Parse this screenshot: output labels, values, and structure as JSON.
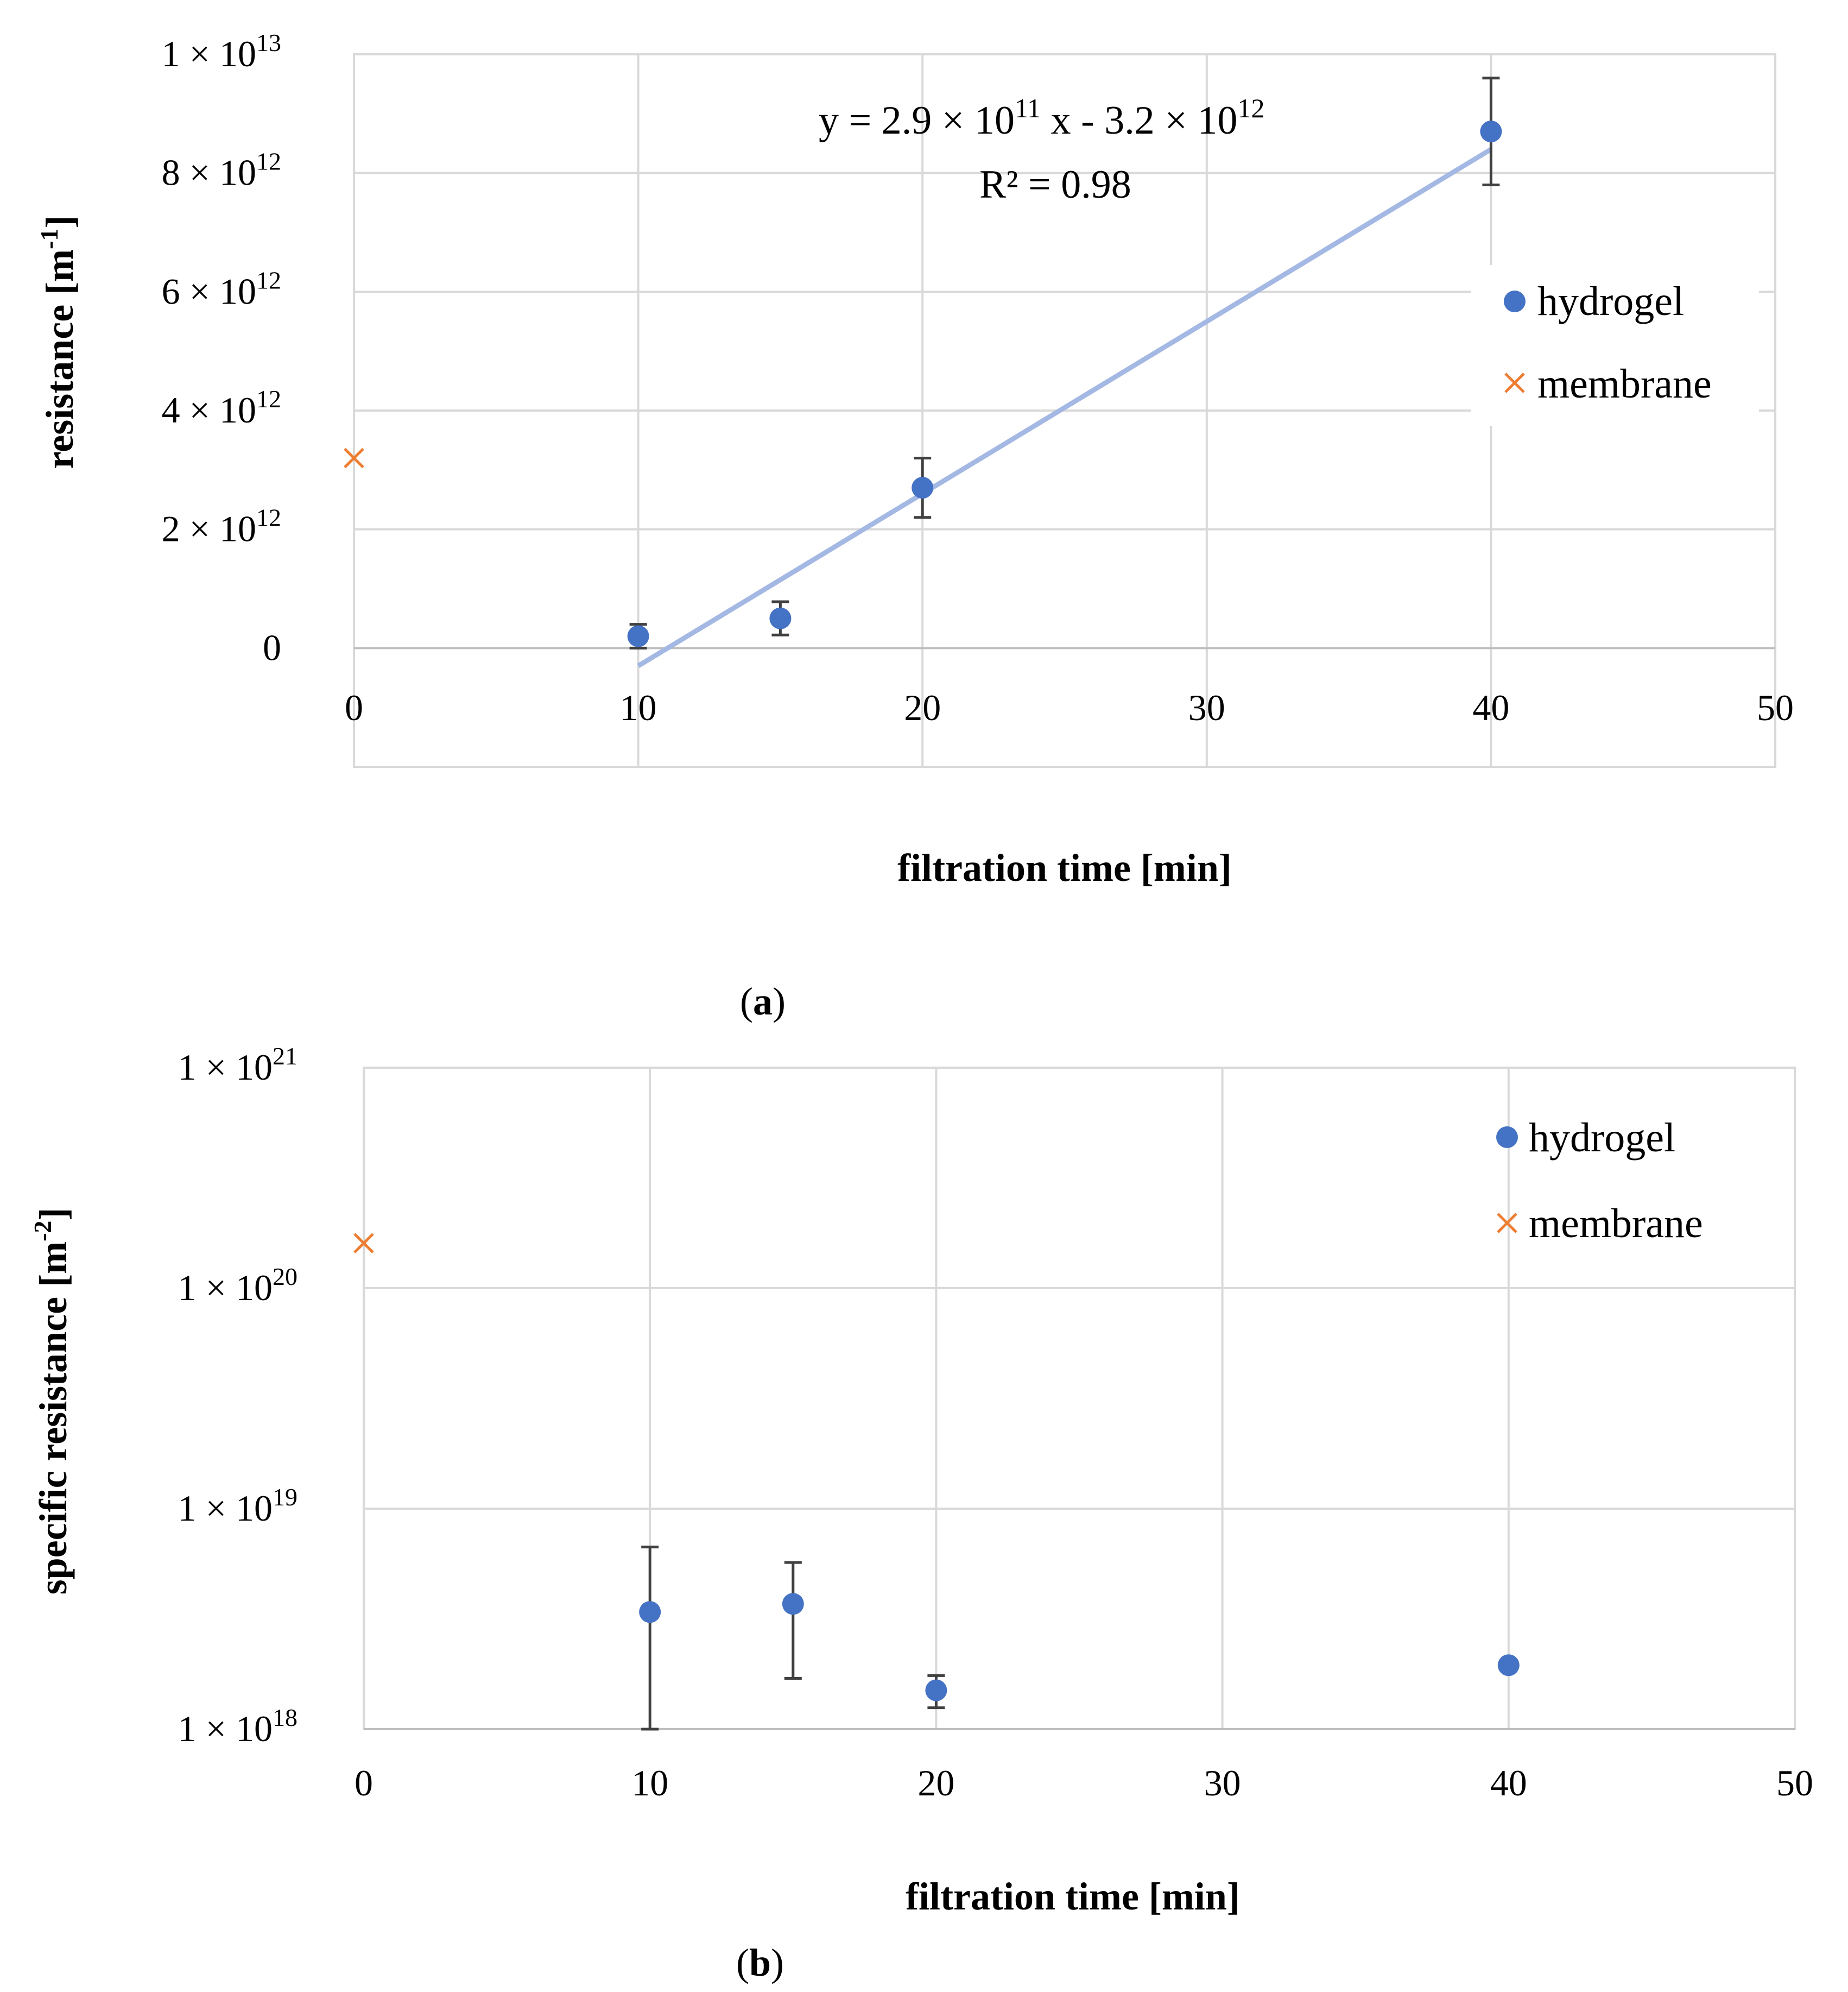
{
  "chart_data": [
    {
      "id": "a",
      "type": "scatter",
      "caption": {
        "open": "(",
        "letter": "a",
        "close": ")"
      },
      "xlabel": "filtration time [min]",
      "ylabel": {
        "text": "resistance [m",
        "sup": "-1",
        "close": "]"
      },
      "xlim": [
        0,
        50
      ],
      "ylim": [
        -2000000000000.0,
        10000000000000.0
      ],
      "xticks": [
        0,
        10,
        20,
        30,
        40,
        50
      ],
      "yticks": [
        {
          "value": 10000000000000.0,
          "mant": "1 × 10",
          "exp": "13"
        },
        {
          "value": 8000000000000.0,
          "mant": "8 × 10",
          "exp": "12"
        },
        {
          "value": 6000000000000.0,
          "mant": "6 × 10",
          "exp": "12"
        },
        {
          "value": 4000000000000.0,
          "mant": "4 × 10",
          "exp": "12"
        },
        {
          "value": 2000000000000.0,
          "mant": "2 × 10",
          "exp": "12"
        },
        {
          "value": 0,
          "mant": "0",
          "exp": ""
        }
      ],
      "series": [
        {
          "name": "hydrogel",
          "marker": "circle",
          "color": "#4472c4",
          "points": [
            {
              "x": 10,
              "y": 200000000000.0,
              "err": 200000000000.0
            },
            {
              "x": 15,
              "y": 500000000000.0,
              "err": 280000000000.0
            },
            {
              "x": 20,
              "y": 2700000000000.0,
              "err": 500000000000.0
            },
            {
              "x": 40,
              "y": 8700000000000.0,
              "err": 900000000000.0
            }
          ]
        },
        {
          "name": "membrane",
          "marker": "x",
          "color": "#ed7d31",
          "points": [
            {
              "x": 0,
              "y": 3200000000000.0
            }
          ]
        }
      ],
      "trendline": {
        "color": "#a4b8e4",
        "slope": 290000000000.0,
        "intercept": -3200000000000.0,
        "x_range": [
          10,
          40
        ],
        "equation": {
          "p1": "y = 2.9 × 10",
          "e1": "11",
          "p2": " x - 3.2 × 10",
          "e2": "12"
        },
        "r2": "R² = 0.98"
      },
      "legend": {
        "position": "right",
        "entries": [
          "hydrogel",
          "membrane"
        ]
      },
      "grid": true
    },
    {
      "id": "b",
      "type": "scatter",
      "caption": {
        "open": "(",
        "letter": "b",
        "close": ")"
      },
      "xlabel": "filtration time [min]",
      "ylabel": {
        "text": "specific resistance [m",
        "sup": "-2",
        "close": "]"
      },
      "xlim": [
        0,
        50
      ],
      "ylim": [
        1e+18,
        1e+21
      ],
      "yscale": "log",
      "xticks": [
        0,
        10,
        20,
        30,
        40,
        50
      ],
      "yticks": [
        {
          "value": 1e+21,
          "mant": "1 × 10",
          "exp": "21"
        },
        {
          "value": 1e+20,
          "mant": "1 × 10",
          "exp": "20"
        },
        {
          "value": 1e+19,
          "mant": "1 × 10",
          "exp": "19"
        },
        {
          "value": 1e+18,
          "mant": "1 × 10",
          "exp": "18"
        }
      ],
      "series": [
        {
          "name": "hydrogel",
          "marker": "circle",
          "color": "#4472c4",
          "points": [
            {
              "x": 10,
              "y": 3.4e+18,
              "lo": 1e+18,
              "hi": 6.7e+18
            },
            {
              "x": 15,
              "y": 3.7e+18,
              "lo": 1.7e+18,
              "hi": 5.7e+18
            },
            {
              "x": 20,
              "y": 1.5e+18,
              "lo": 1.25e+18,
              "hi": 1.75e+18
            },
            {
              "x": 40,
              "y": 1.95e+18,
              "lo": 1.85e+18,
              "hi": 2.05e+18
            }
          ]
        },
        {
          "name": "membrane",
          "marker": "x",
          "color": "#ed7d31",
          "points": [
            {
              "x": 0,
              "y": 1.6e+20
            }
          ]
        }
      ],
      "legend": {
        "position": "top-right",
        "entries": [
          "hydrogel",
          "membrane"
        ]
      },
      "grid": true
    }
  ]
}
